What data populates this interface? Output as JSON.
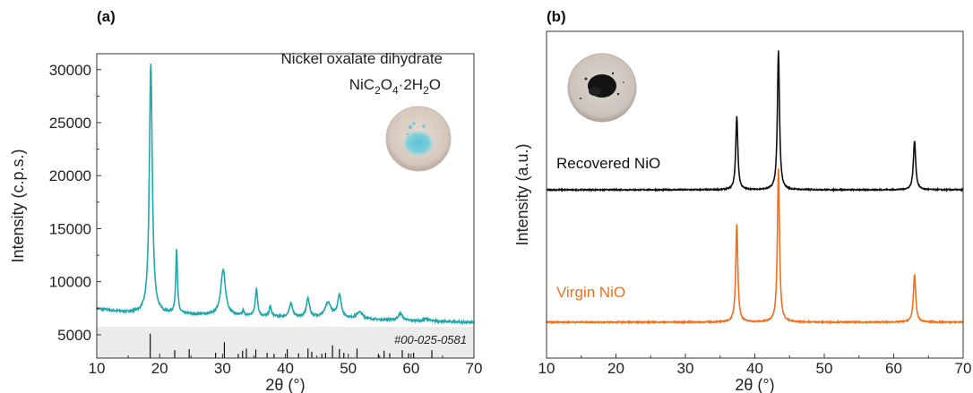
{
  "colors": {
    "oxalate": "#1fa8ad",
    "recovered": "#111111",
    "virgin": "#f26f1c",
    "reference_band": "#ebebeb",
    "reference_sticks": "#111111"
  },
  "chart_data": [
    {
      "type": "line",
      "panel": "(a)",
      "xlabel": "2θ (°)",
      "ylabel": "Intensity (c.p.s.)",
      "xlim": [
        10,
        70
      ],
      "ylim": [
        2800,
        31500
      ],
      "x_ticks": [
        10,
        20,
        30,
        40,
        50,
        60,
        70
      ],
      "y_ticks": [
        5000,
        10000,
        15000,
        20000,
        25000,
        30000
      ],
      "grid": false,
      "annotation_line1": "Nickel oxalate dihydrate",
      "formula": {
        "base": "NiC",
        "sub1": "2",
        "mid": "O",
        "sub2": "4",
        "dot": "·2H",
        "sub3": "2",
        "end": "O"
      },
      "inset_image": "photo of light blue powder on white disc",
      "series": [
        {
          "name": "",
          "color": "#1fa8ad",
          "baseline": [
            [
              10,
              7450
            ],
            [
              14,
              7150
            ],
            [
              17,
              7000
            ],
            [
              25,
              6900
            ],
            [
              35,
              6750
            ],
            [
              45,
              6600
            ],
            [
              55,
              6400
            ],
            [
              65,
              6250
            ],
            [
              70,
              6150
            ]
          ],
          "peaks": [
            {
              "x": 18.6,
              "y": 30500,
              "w": 0.28
            },
            {
              "x": 22.7,
              "y": 13000,
              "w": 0.16
            },
            {
              "x": 30.1,
              "y": 11100,
              "w": 0.45
            },
            {
              "x": 33.3,
              "y": 7200,
              "w": 0.15
            },
            {
              "x": 35.4,
              "y": 9300,
              "w": 0.22
            },
            {
              "x": 37.6,
              "y": 7650,
              "w": 0.2
            },
            {
              "x": 40.9,
              "y": 7950,
              "w": 0.3
            },
            {
              "x": 43.6,
              "y": 8400,
              "w": 0.3
            },
            {
              "x": 46.8,
              "y": 7950,
              "w": 0.6
            },
            {
              "x": 48.6,
              "y": 8700,
              "w": 0.35
            },
            {
              "x": 51.8,
              "y": 7100,
              "w": 0.6
            },
            {
              "x": 58.3,
              "y": 7000,
              "w": 0.4
            },
            {
              "x": 62.5,
              "y": 6500,
              "w": 0.4
            }
          ]
        }
      ],
      "reference": {
        "label": "#00-025-0581",
        "band_top": 5750,
        "sticks": [
          {
            "x": 18.5,
            "y": 5100
          },
          {
            "x": 22.4,
            "y": 3550
          },
          {
            "x": 24.7,
            "y": 3650
          },
          {
            "x": 28.9,
            "y": 3300
          },
          {
            "x": 30.3,
            "y": 4300
          },
          {
            "x": 32.5,
            "y": 3200
          },
          {
            "x": 33.2,
            "y": 3500
          },
          {
            "x": 33.8,
            "y": 3700
          },
          {
            "x": 35.3,
            "y": 3600
          },
          {
            "x": 37.1,
            "y": 3300
          },
          {
            "x": 38.2,
            "y": 3200
          },
          {
            "x": 40.3,
            "y": 3650
          },
          {
            "x": 42.1,
            "y": 3250
          },
          {
            "x": 43.6,
            "y": 3700
          },
          {
            "x": 44.2,
            "y": 3400
          },
          {
            "x": 45.8,
            "y": 3200
          },
          {
            "x": 46.4,
            "y": 3300
          },
          {
            "x": 47.5,
            "y": 4000
          },
          {
            "x": 48.6,
            "y": 3650
          },
          {
            "x": 49.3,
            "y": 3300
          },
          {
            "x": 51.4,
            "y": 3700
          },
          {
            "x": 54.8,
            "y": 3200
          },
          {
            "x": 55.7,
            "y": 3500
          },
          {
            "x": 56.6,
            "y": 3250
          },
          {
            "x": 58.6,
            "y": 3550
          },
          {
            "x": 59.6,
            "y": 3250
          },
          {
            "x": 60.4,
            "y": 3300
          },
          {
            "x": 63.3,
            "y": 3550
          }
        ]
      }
    },
    {
      "type": "line",
      "panel": "(b)",
      "xlabel": "2θ (°)",
      "ylabel": "Intensity (a.u.)",
      "xlim": [
        10,
        70
      ],
      "ylim": [
        0,
        100
      ],
      "x_ticks": [
        10,
        20,
        30,
        40,
        50,
        60,
        70
      ],
      "y_ticks": [],
      "grid": false,
      "inset_image": "photo of black powder on white disc",
      "series": [
        {
          "name": "Recovered NiO",
          "color": "#111111",
          "baseline": 51.5,
          "peaks": [
            {
              "x": 37.4,
              "y": 74,
              "w": 0.18
            },
            {
              "x": 43.4,
              "y": 94,
              "w": 0.18
            },
            {
              "x": 63.0,
              "y": 66.5,
              "w": 0.2
            }
          ]
        },
        {
          "name": "Virgin NiO",
          "color": "#f26f1c",
          "baseline": 11,
          "peaks": [
            {
              "x": 37.4,
              "y": 41,
              "w": 0.18
            },
            {
              "x": 43.4,
              "y": 58,
              "w": 0.18
            },
            {
              "x": 63.0,
              "y": 25.5,
              "w": 0.2
            }
          ]
        }
      ]
    }
  ]
}
